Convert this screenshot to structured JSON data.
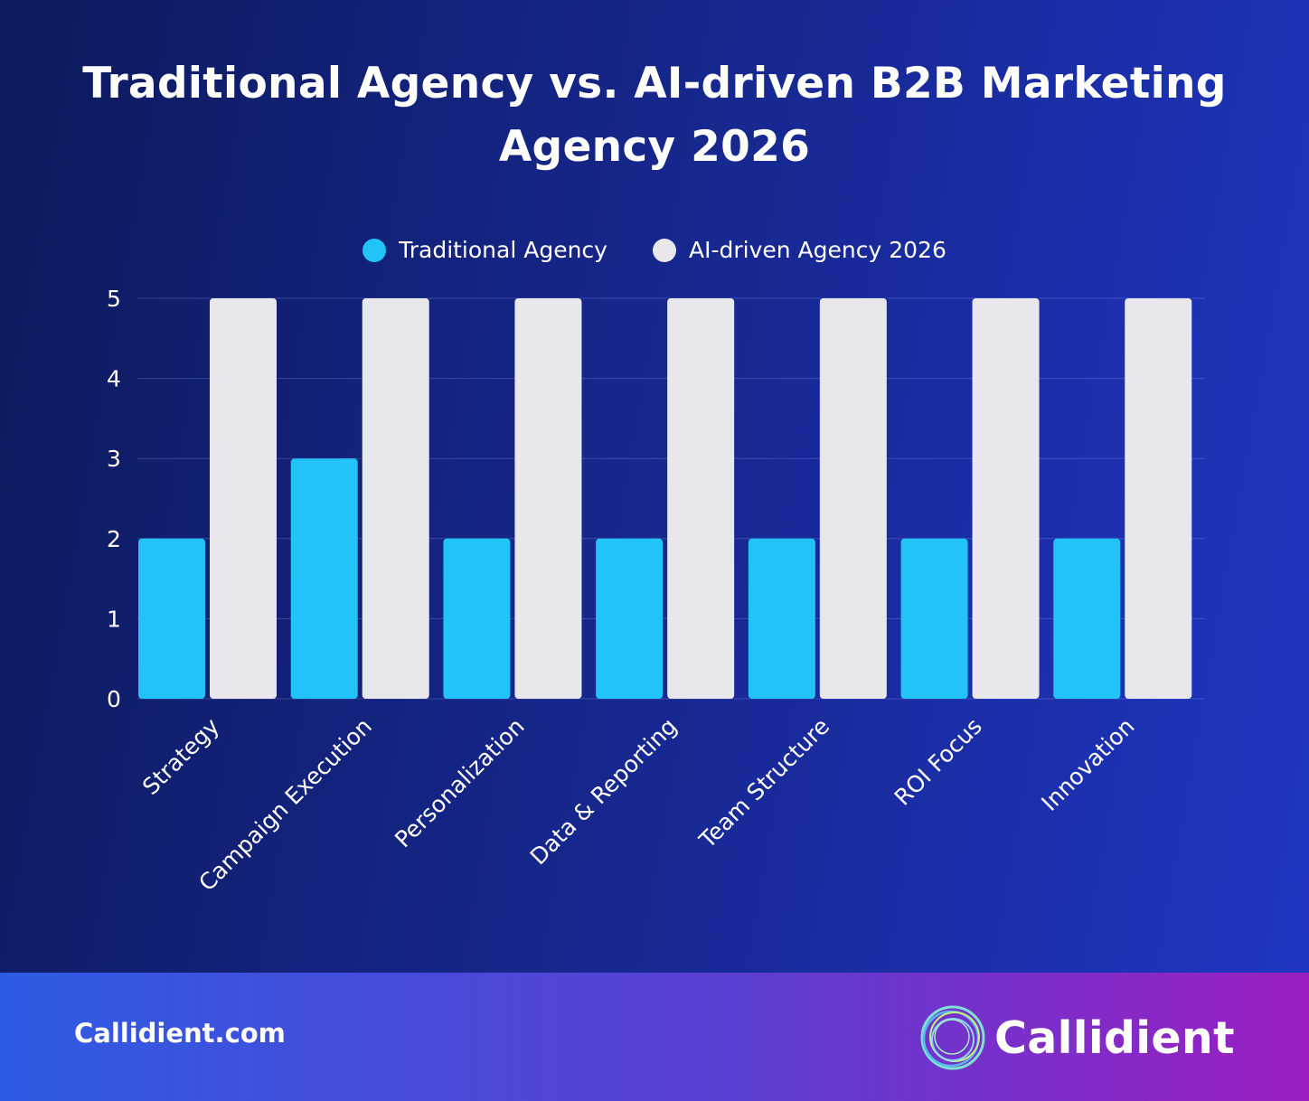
{
  "chart_data": {
    "type": "bar",
    "title": "Traditional Agency vs. AI-driven B2B Marketing Agency 2026",
    "categories": [
      "Strategy",
      "Campaign Execution",
      "Personalization",
      "Data & Reporting",
      "Team Structure",
      "ROI Focus",
      "Innovation"
    ],
    "series": [
      {
        "name": "Traditional Agency",
        "values": [
          2,
          3,
          2,
          2,
          2,
          2,
          2
        ],
        "color": "#22c4f7"
      },
      {
        "name": "AI-driven Agency 2026",
        "values": [
          5,
          5,
          5,
          5,
          5,
          5,
          5
        ],
        "color": "#e8e8ec"
      }
    ],
    "xlabel": "",
    "ylabel": "",
    "ylim": [
      0,
      5
    ],
    "yticks": [
      "0",
      "1",
      "2",
      "3",
      "4",
      "5"
    ],
    "grid": true,
    "legend": "top-center"
  },
  "footer": {
    "site": "Callidient.com",
    "brand_name": "Callidient",
    "logo_icon": "concentric-rings-logo-icon"
  }
}
